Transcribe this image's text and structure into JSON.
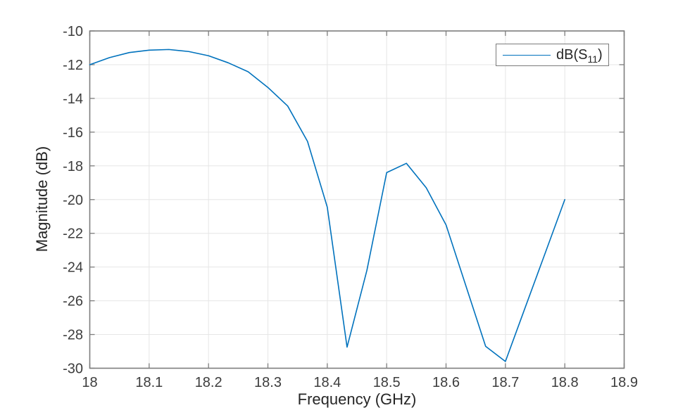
{
  "figure": {
    "background": "#ffffff",
    "legend": {
      "prefix": "dB(S",
      "sub": "11",
      "suffix": ")"
    }
  },
  "chart_data": {
    "type": "line",
    "title": "",
    "xlabel": "Frequency (GHz)",
    "ylabel": "Magnitude (dB)",
    "xlim": [
      18,
      18.9
    ],
    "ylim": [
      -30,
      -10
    ],
    "x_ticks": [
      18,
      18.1,
      18.2,
      18.3,
      18.4,
      18.5,
      18.6,
      18.7,
      18.8,
      18.9
    ],
    "x_tick_labels": [
      "18",
      "18.1",
      "18.2",
      "18.3",
      "18.4",
      "18.5",
      "18.6",
      "18.7",
      "18.8",
      "18.9"
    ],
    "y_ticks": [
      -30,
      -28,
      -26,
      -24,
      -22,
      -20,
      -18,
      -16,
      -14,
      -12,
      -10
    ],
    "y_tick_labels": [
      "-30",
      "-28",
      "-26",
      "-24",
      "-22",
      "-20",
      "-18",
      "-16",
      "-14",
      "-12",
      "-10"
    ],
    "grid": true,
    "legend_position": "top-right",
    "axis_color": "#7d7d7d",
    "grid_color": "#e6e6e6",
    "tick_label_color": "#3d3d3d",
    "series": [
      {
        "name": "dB(S11)",
        "color": "#0072BD",
        "x": [
          18.0,
          18.0333,
          18.0667,
          18.1,
          18.1333,
          18.1667,
          18.2,
          18.2333,
          18.2667,
          18.3,
          18.3333,
          18.3667,
          18.4,
          18.4333,
          18.4667,
          18.5,
          18.5333,
          18.5667,
          18.6,
          18.6333,
          18.6667,
          18.7,
          18.7333,
          18.7667,
          18.8
        ],
        "y": [
          -12.0,
          -11.58,
          -11.28,
          -11.14,
          -11.1,
          -11.22,
          -11.47,
          -11.89,
          -12.42,
          -13.35,
          -14.45,
          -16.55,
          -20.45,
          -28.75,
          -24.2,
          -18.4,
          -17.85,
          -19.3,
          -21.5,
          -25.1,
          -28.7,
          -29.6,
          -26.4,
          -23.2,
          -20.0
        ]
      }
    ]
  }
}
